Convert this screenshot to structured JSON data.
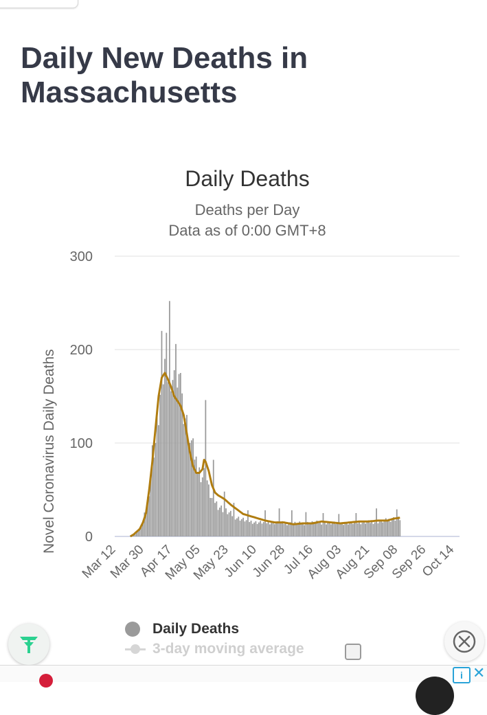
{
  "page": {
    "title": "Daily New Deaths in Massachusetts"
  },
  "legend": {
    "items": [
      {
        "label": "Daily Deaths",
        "color": "#9a9a9a"
      },
      {
        "label": "3-day moving average",
        "color": "#d6d6d6"
      }
    ]
  },
  "colors": {
    "bars": "#9a9a9a",
    "average_line": "#b07d10",
    "title": "#363a48",
    "fab_icon": "#2bd190",
    "ad_info": "#29a3d8"
  },
  "icons": {
    "fab": "leaf-logo-icon",
    "close": "close-circle-icon",
    "ad_info": "info-icon",
    "ad_close": "close-icon"
  },
  "chart_data": {
    "type": "bar",
    "title": "Daily Deaths",
    "subtitle": "Deaths per Day",
    "subtitle2": "Data as of 0:00 GMT+8",
    "ylabel": "Novel Coronavirus Daily Deaths",
    "xlabel": "",
    "ylim": [
      0,
      300
    ],
    "yticks": [
      0,
      100,
      200,
      300
    ],
    "grid": true,
    "x_start_tick_label": "Mar 12",
    "x_tick_labels": [
      "Mar 12",
      "Mar 30",
      "Apr 17",
      "May 05",
      "May 23",
      "Jun 10",
      "Jun 28",
      "Jul 16",
      "Aug 03",
      "Aug 21",
      "Sep 08",
      "Sep 26",
      "Oct 14"
    ],
    "x_tick_interval_days": 18,
    "bar_key_points": [
      [
        10,
        0
      ],
      [
        11,
        1
      ],
      [
        12,
        2
      ],
      [
        13,
        3
      ],
      [
        14,
        6
      ],
      [
        16,
        8
      ],
      [
        18,
        15
      ],
      [
        20,
        30
      ],
      [
        22,
        50
      ],
      [
        24,
        90
      ],
      [
        26,
        100
      ],
      [
        28,
        130
      ],
      [
        30,
        165
      ],
      [
        32,
        180
      ],
      [
        34,
        170
      ],
      [
        36,
        175
      ],
      [
        38,
        160
      ],
      [
        40,
        155
      ],
      [
        42,
        150
      ],
      [
        44,
        140
      ],
      [
        46,
        120
      ],
      [
        48,
        100
      ],
      [
        50,
        85
      ],
      [
        52,
        75
      ],
      [
        54,
        70
      ],
      [
        56,
        65
      ],
      [
        58,
        70
      ],
      [
        60,
        50
      ],
      [
        62,
        40
      ],
      [
        64,
        38
      ],
      [
        66,
        33
      ],
      [
        70,
        28
      ],
      [
        74,
        24
      ],
      [
        78,
        20
      ],
      [
        84,
        17
      ],
      [
        90,
        15
      ],
      [
        100,
        15
      ],
      [
        110,
        14
      ],
      [
        120,
        14
      ],
      [
        130,
        15
      ],
      [
        140,
        14
      ],
      [
        150,
        14
      ],
      [
        160,
        15
      ],
      [
        170,
        16
      ],
      [
        178,
        19
      ],
      [
        182,
        19
      ]
    ],
    "bar_spikes": [
      [
        30,
        220
      ],
      [
        33,
        218
      ],
      [
        35,
        252
      ],
      [
        39,
        206
      ],
      [
        42,
        175
      ],
      [
        50,
        105
      ],
      [
        58,
        146
      ],
      [
        63,
        82
      ],
      [
        70,
        48
      ],
      [
        76,
        36
      ],
      [
        85,
        28
      ],
      [
        96,
        28
      ],
      [
        105,
        30
      ],
      [
        113,
        28
      ],
      [
        122,
        26
      ],
      [
        133,
        25
      ],
      [
        143,
        24
      ],
      [
        154,
        25
      ],
      [
        167,
        30
      ],
      [
        180,
        29
      ]
    ],
    "average_key_points": [
      [
        10,
        0
      ],
      [
        12,
        2
      ],
      [
        14,
        5
      ],
      [
        16,
        8
      ],
      [
        18,
        15
      ],
      [
        20,
        25
      ],
      [
        22,
        50
      ],
      [
        24,
        80
      ],
      [
        26,
        115
      ],
      [
        28,
        150
      ],
      [
        30,
        170
      ],
      [
        32,
        175
      ],
      [
        34,
        168
      ],
      [
        36,
        160
      ],
      [
        38,
        150
      ],
      [
        40,
        145
      ],
      [
        42,
        140
      ],
      [
        44,
        130
      ],
      [
        46,
        110
      ],
      [
        48,
        90
      ],
      [
        50,
        75
      ],
      [
        52,
        68
      ],
      [
        54,
        68
      ],
      [
        56,
        72
      ],
      [
        57,
        82
      ],
      [
        58,
        80
      ],
      [
        60,
        70
      ],
      [
        62,
        55
      ],
      [
        64,
        47
      ],
      [
        66,
        44
      ],
      [
        70,
        40
      ],
      [
        74,
        34
      ],
      [
        78,
        29
      ],
      [
        82,
        24
      ],
      [
        86,
        22
      ],
      [
        90,
        20
      ],
      [
        96,
        17
      ],
      [
        102,
        15
      ],
      [
        108,
        15
      ],
      [
        114,
        13
      ],
      [
        120,
        14
      ],
      [
        126,
        14
      ],
      [
        132,
        16
      ],
      [
        138,
        15
      ],
      [
        144,
        14
      ],
      [
        150,
        15
      ],
      [
        156,
        16
      ],
      [
        162,
        16
      ],
      [
        168,
        17
      ],
      [
        174,
        17
      ],
      [
        178,
        19
      ],
      [
        182,
        20
      ]
    ]
  }
}
